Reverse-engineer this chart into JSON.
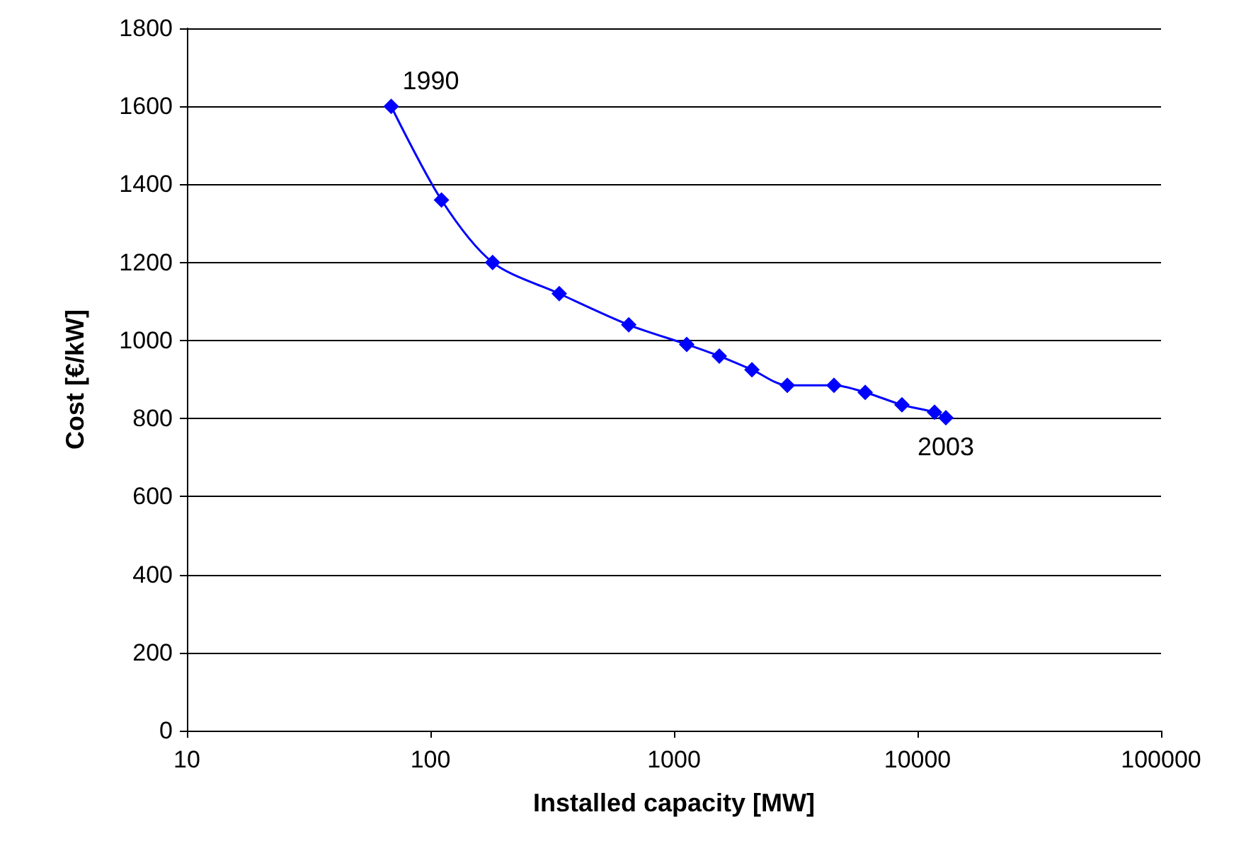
{
  "chart_data": {
    "type": "line",
    "xlabel": "Installed capacity [MW]",
    "ylabel": "Cost [€/kW]",
    "x": [
      69,
      111,
      180,
      338,
      652,
      1128,
      1535,
      2090,
      2920,
      4540,
      6100,
      8630,
      11750,
      13070
    ],
    "series": [
      {
        "color": "#0000ff",
        "values": [
          1600,
          1360,
          1200,
          1120,
          1040,
          990,
          960,
          925,
          885,
          885,
          867,
          835,
          816,
          802
        ]
      }
    ],
    "xlim": [
      10,
      100000
    ],
    "xticks": [
      10,
      100,
      1000,
      10000,
      100000
    ],
    "ylim": [
      0,
      1800
    ],
    "yticks": [
      0,
      200,
      400,
      600,
      800,
      1000,
      1200,
      1400,
      1600,
      1800
    ],
    "log": "x",
    "grid": "y",
    "marker": "diamond",
    "line_style": "solid",
    "annotations": [
      {
        "text": "1990",
        "x": 69,
        "y": 1600
      },
      {
        "text": "2003",
        "x": 13070,
        "y": 800
      }
    ]
  }
}
